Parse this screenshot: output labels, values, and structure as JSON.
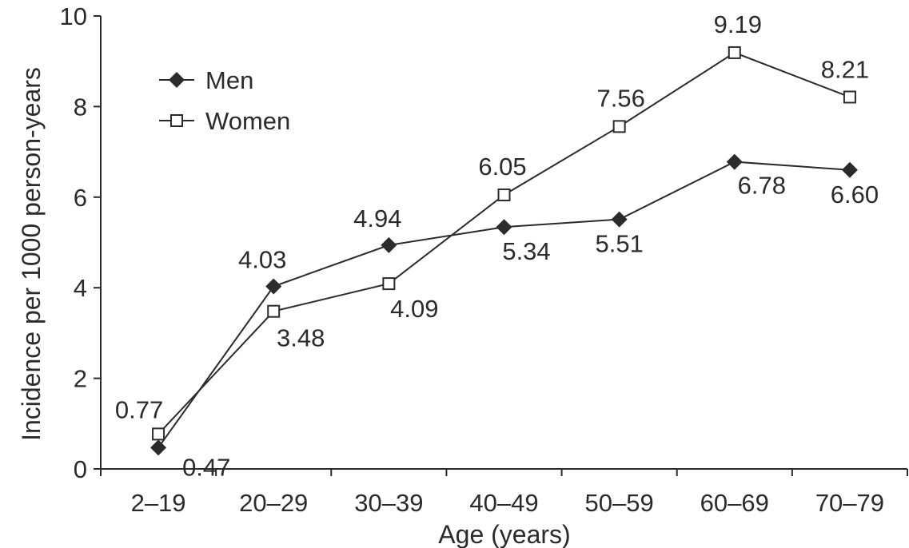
{
  "chart_data": {
    "type": "line",
    "title": "",
    "xlabel": "Age (years)",
    "ylabel": "Incidence per 1000 person-years",
    "categories": [
      "2–19",
      "20–29",
      "30–39",
      "40–49",
      "50–59",
      "60–69",
      "70–79"
    ],
    "ylim": [
      0,
      10
    ],
    "yticks": [
      "0",
      "2",
      "4",
      "6",
      "8",
      "10"
    ],
    "grid": false,
    "legend_position": "top-left",
    "series": [
      {
        "name": "Men",
        "marker": "filled-diamond",
        "color": "#2b2b2b",
        "values": [
          0.47,
          4.03,
          4.94,
          5.34,
          5.51,
          6.78,
          6.6
        ],
        "labels": [
          "0.47",
          "4.03",
          "4.94",
          "5.34",
          "5.51",
          "6.78",
          "6.60"
        ]
      },
      {
        "name": "Women",
        "marker": "open-square",
        "color": "#2b2b2b",
        "values": [
          0.77,
          3.48,
          4.09,
          6.05,
          7.56,
          9.19,
          8.21
        ],
        "labels": [
          "0.77",
          "3.48",
          "4.09",
          "6.05",
          "7.56",
          "9.19",
          "8.21"
        ]
      }
    ]
  }
}
